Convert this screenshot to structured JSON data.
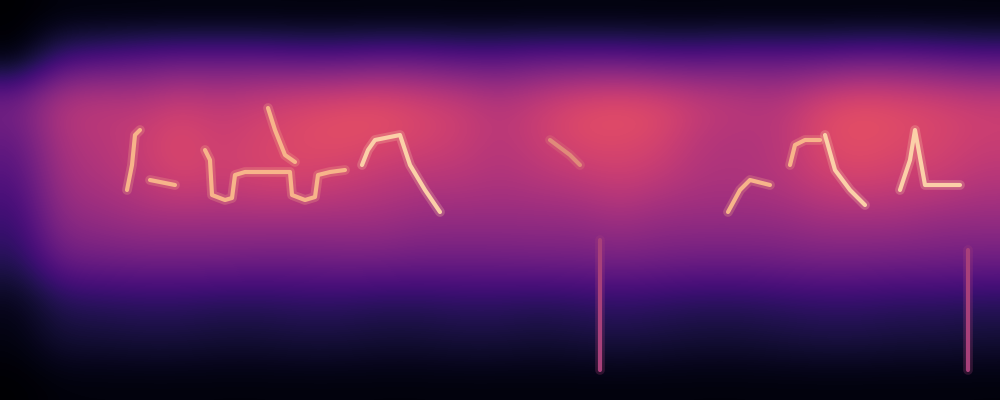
{
  "chart_data": {
    "type": "heatmap",
    "color": "magma",
    "tick_labels": false,
    "xlim": [
      0,
      1000
    ],
    "ylim": [
      0,
      400
    ],
    "zlim": [
      0,
      1
    ],
    "cells": [
      [
        0,
        0.02,
        0.02,
        0.02,
        0.02,
        0.02,
        0.02,
        0.02,
        0.02,
        0.02,
        0.02,
        0.02,
        0.02,
        0.02,
        0.02,
        0.02,
        0.02,
        0.02,
        0.02,
        0.02,
        0.02,
        0.02,
        0.02,
        0.02,
        0.02
      ],
      [
        0.02,
        0.22,
        0.25,
        0.28,
        0.3,
        0.3,
        0.3,
        0.28,
        0.28,
        0.3,
        0.3,
        0.28,
        0.28,
        0.3,
        0.3,
        0.3,
        0.28,
        0.28,
        0.3,
        0.3,
        0.3,
        0.32,
        0.32,
        0.3,
        0.28
      ],
      [
        0.35,
        0.5,
        0.52,
        0.5,
        0.55,
        0.52,
        0.55,
        0.58,
        0.6,
        0.62,
        0.58,
        0.55,
        0.5,
        0.55,
        0.6,
        0.62,
        0.6,
        0.55,
        0.52,
        0.5,
        0.58,
        0.62,
        0.6,
        0.58,
        0.55
      ],
      [
        0.3,
        0.48,
        0.5,
        0.55,
        0.6,
        0.55,
        0.58,
        0.6,
        0.62,
        0.6,
        0.58,
        0.55,
        0.5,
        0.55,
        0.6,
        0.6,
        0.58,
        0.5,
        0.48,
        0.5,
        0.6,
        0.62,
        0.6,
        0.58,
        0.55
      ],
      [
        0.25,
        0.45,
        0.48,
        0.52,
        0.58,
        0.55,
        0.58,
        0.58,
        0.55,
        0.52,
        0.5,
        0.5,
        0.48,
        0.5,
        0.52,
        0.55,
        0.52,
        0.48,
        0.48,
        0.5,
        0.55,
        0.58,
        0.55,
        0.55,
        0.5
      ],
      [
        0.2,
        0.4,
        0.42,
        0.45,
        0.45,
        0.45,
        0.45,
        0.45,
        0.45,
        0.45,
        0.42,
        0.42,
        0.42,
        0.42,
        0.42,
        0.45,
        0.42,
        0.42,
        0.42,
        0.42,
        0.45,
        0.45,
        0.45,
        0.42,
        0.42
      ],
      [
        0.15,
        0.32,
        0.33,
        0.34,
        0.34,
        0.34,
        0.33,
        0.33,
        0.34,
        0.34,
        0.33,
        0.33,
        0.33,
        0.34,
        0.34,
        0.35,
        0.34,
        0.33,
        0.33,
        0.34,
        0.35,
        0.35,
        0.34,
        0.34,
        0.33
      ],
      [
        0.05,
        0.15,
        0.16,
        0.17,
        0.17,
        0.16,
        0.16,
        0.17,
        0.17,
        0.16,
        0.16,
        0.17,
        0.17,
        0.16,
        0.17,
        0.18,
        0.17,
        0.16,
        0.16,
        0.17,
        0.18,
        0.18,
        0.17,
        0.17,
        0.16
      ],
      [
        0.03,
        0.1,
        0.1,
        0.11,
        0.11,
        0.1,
        0.1,
        0.11,
        0.11,
        0.1,
        0.1,
        0.11,
        0.11,
        0.1,
        0.11,
        0.12,
        0.11,
        0.1,
        0.1,
        0.11,
        0.12,
        0.12,
        0.11,
        0.11,
        0.1
      ],
      [
        0,
        0.02,
        0.02,
        0.02,
        0.02,
        0.02,
        0.02,
        0.02,
        0.02,
        0.02,
        0.02,
        0.02,
        0.02,
        0.02,
        0.02,
        0.02,
        0.02,
        0.02,
        0.02,
        0.02,
        0.02,
        0.02,
        0.02,
        0.02,
        0.02
      ]
    ],
    "series": [
      {
        "color": "#f7b48a",
        "x": [
          127,
          132,
          135,
          140
        ],
        "y": [
          210,
          235,
          265,
          270
        ]
      },
      {
        "color": "#f7b48a",
        "x": [
          150,
          160,
          175
        ],
        "y": [
          220,
          218,
          215
        ]
      },
      {
        "color": "#f7b48a",
        "x": [
          205,
          210,
          212,
          225,
          232,
          235,
          245,
          290,
          292,
          305,
          315,
          318,
          330,
          345
        ],
        "y": [
          250,
          240,
          205,
          200,
          202,
          225,
          228,
          228,
          205,
          200,
          203,
          225,
          228,
          230
        ]
      },
      {
        "color": "#f7b48a",
        "x": [
          268,
          275,
          285,
          295
        ],
        "y": [
          292,
          270,
          245,
          238
        ]
      },
      {
        "color": "#fbd0a8",
        "x": [
          362,
          368,
          375,
          400,
          410,
          425,
          440
        ],
        "y": [
          235,
          250,
          260,
          265,
          235,
          210,
          188
        ]
      },
      {
        "color": "#e08a7a",
        "x": [
          550,
          570,
          580
        ],
        "y": [
          260,
          245,
          235
        ]
      },
      {
        "color": "#f7b48a",
        "x": [
          728,
          740,
          750,
          770
        ],
        "y": [
          188,
          210,
          220,
          215
        ]
      },
      {
        "color": "#f7b48a",
        "x": [
          790,
          795,
          805,
          820
        ],
        "y": [
          235,
          255,
          260,
          260
        ]
      },
      {
        "color": "#fbd0a8",
        "x": [
          825,
          835,
          850,
          865
        ],
        "y": [
          265,
          230,
          210,
          195
        ]
      },
      {
        "color": "#fbd0a8",
        "x": [
          900,
          910,
          915,
          925,
          960
        ],
        "y": [
          210,
          240,
          270,
          215,
          215
        ]
      },
      {
        "color": "#a8407a",
        "x": [
          600,
          600
        ],
        "y": [
          160,
          30
        ]
      },
      {
        "color": "#a8407a",
        "x": [
          968,
          968
        ],
        "y": [
          150,
          30
        ]
      }
    ]
  }
}
